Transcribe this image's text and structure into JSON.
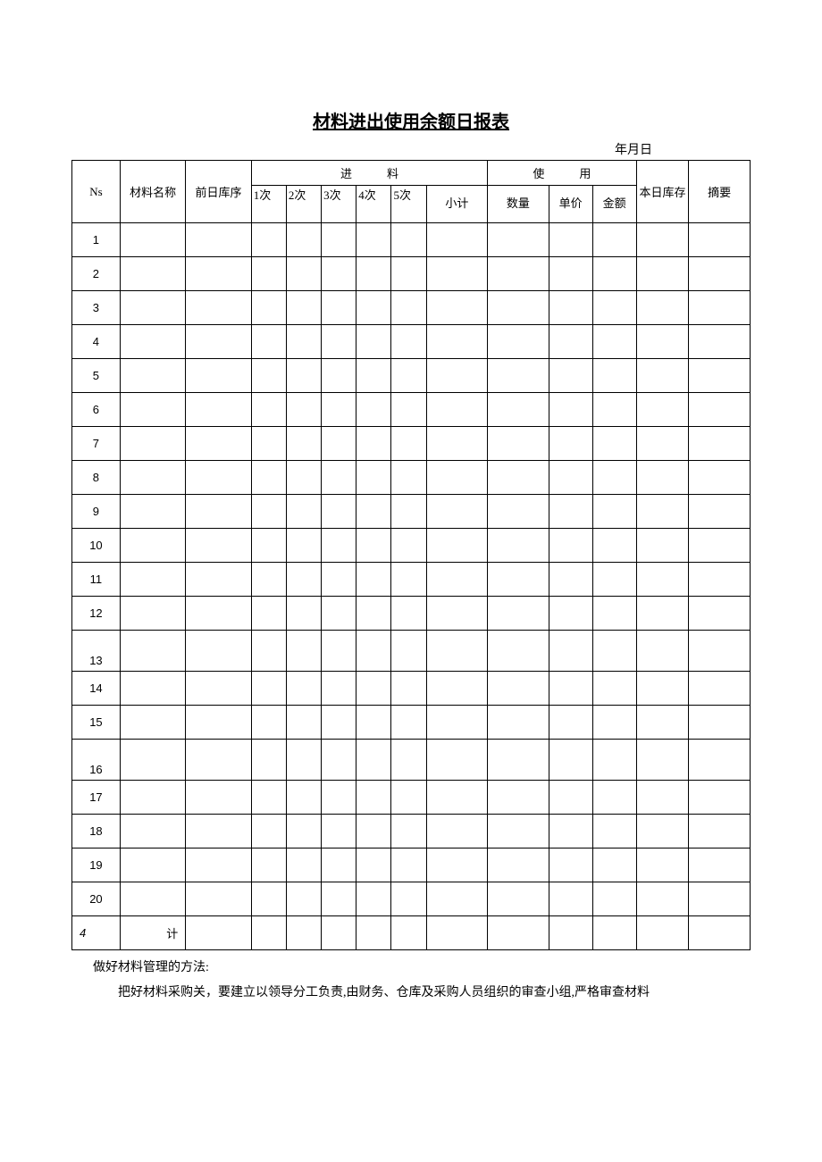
{
  "title": "材料进出使用余额日报表",
  "date_label": "年月日",
  "headers": {
    "ns": "Ns",
    "material_name": "材料名称",
    "prev_stock": "前日库序",
    "incoming_group": "进　　　料",
    "usage_group": "使　　　用",
    "today_stock": "本日库存",
    "summary": "摘要",
    "c1": "1次",
    "c2": "2次",
    "c3": "3次",
    "c4": "4次",
    "c5": "5次",
    "subtotal": "小计",
    "qty": "数量",
    "price": "单价",
    "amount": "金额"
  },
  "rows": [
    {
      "n": "1"
    },
    {
      "n": "2"
    },
    {
      "n": "3"
    },
    {
      "n": "4"
    },
    {
      "n": "5"
    },
    {
      "n": "6"
    },
    {
      "n": "7"
    },
    {
      "n": "8"
    },
    {
      "n": "9"
    },
    {
      "n": "10"
    },
    {
      "n": "11"
    },
    {
      "n": "12"
    },
    {
      "n": "13"
    },
    {
      "n": "14"
    },
    {
      "n": "15"
    },
    {
      "n": "16"
    },
    {
      "n": "17"
    },
    {
      "n": "18"
    },
    {
      "n": "19"
    },
    {
      "n": "20"
    }
  ],
  "total": {
    "num": "4",
    "label": "计"
  },
  "footer": {
    "line1": "做好材料管理的方法:",
    "line2": "把好材料采购关，要建立以领导分工负责,由财务、仓库及采购人员组织的审查小组,严格审查材料"
  },
  "style": {
    "border_color": "#000000",
    "background_color": "#ffffff",
    "text_color": "#000000",
    "title_fontsize": 20,
    "body_fontsize": 13,
    "footer_fontsize": 14
  }
}
